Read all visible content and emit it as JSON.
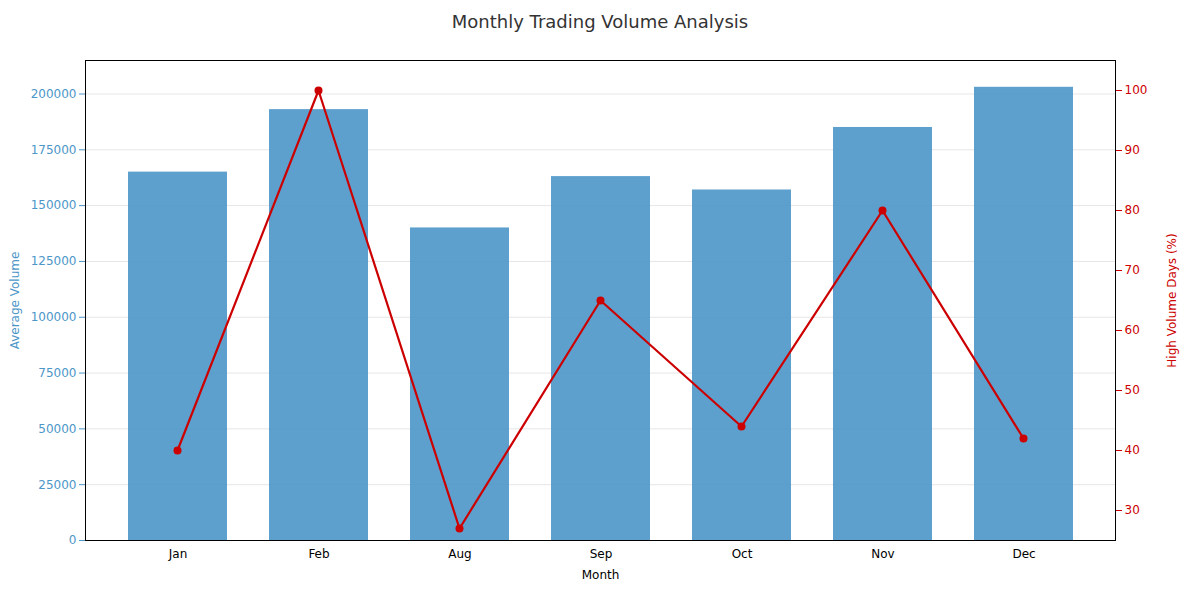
{
  "chart_data": {
    "type": "bar",
    "title": "Monthly Trading Volume Analysis",
    "xlabel": "Month",
    "ylabel": "Average Volume",
    "y2label": "High Volume Days (%)",
    "categories": [
      "Jan",
      "Feb",
      "Aug",
      "Sep",
      "Oct",
      "Nov",
      "Dec"
    ],
    "series": [
      {
        "type": "bar",
        "color": "#4c96c8",
        "values": [
          165000,
          193000,
          140000,
          163000,
          157000,
          185000,
          203000
        ]
      },
      {
        "type": "line",
        "axis": "y2",
        "color": "#cc0000",
        "marker": "circle",
        "values": [
          40,
          100,
          27,
          65,
          44,
          80,
          42
        ]
      }
    ],
    "ylim": [
      0,
      215000
    ],
    "yticks": [
      0,
      25000,
      50000,
      75000,
      100000,
      125000,
      150000,
      175000,
      200000
    ],
    "y2lim": [
      25,
      105
    ],
    "y2ticks": [
      30,
      40,
      50,
      60,
      70,
      80,
      90,
      100
    ],
    "grid": true
  }
}
